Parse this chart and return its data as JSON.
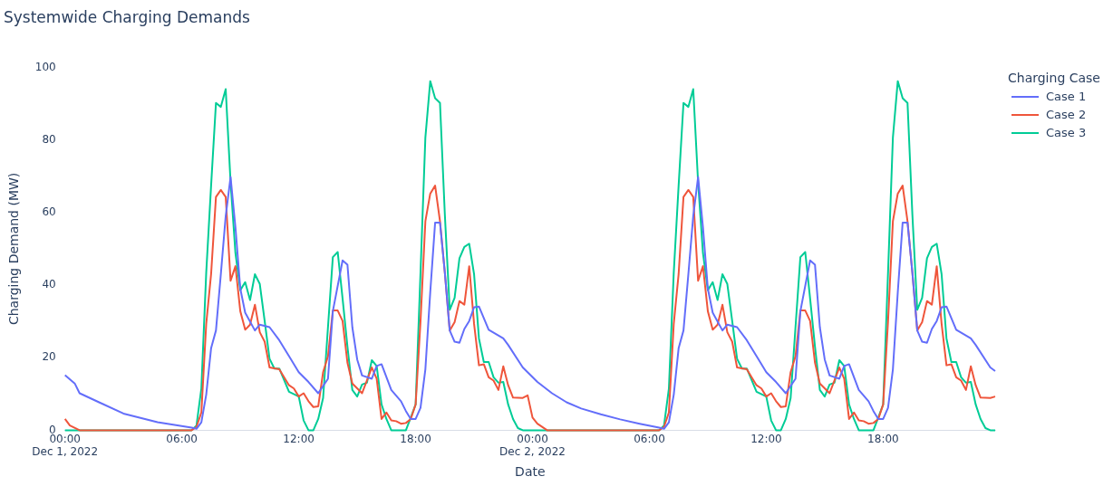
{
  "chart_data": {
    "type": "line",
    "title": "Systemwide Charging Demands",
    "xlabel": "Date",
    "ylabel": "Charging Demand (MW)",
    "legend_title": "Charging Case",
    "legend": "right",
    "grid": false,
    "marker": "none",
    "line_style": "solid",
    "xticks": [
      {
        "value": "2022-12-01T00:00",
        "label": "00:00\nDec 1, 2022"
      },
      {
        "value": "2022-12-01T06:00",
        "label": "06:00"
      },
      {
        "value": "2022-12-01T12:00",
        "label": "12:00"
      },
      {
        "value": "2022-12-01T18:00",
        "label": "18:00"
      },
      {
        "value": "2022-12-02T00:00",
        "label": "00:00\nDec 2, 2022"
      },
      {
        "value": "2022-12-02T06:00",
        "label": "06:00"
      },
      {
        "value": "2022-12-02T12:00",
        "label": "12:00"
      },
      {
        "value": "2022-12-02T18:00",
        "label": "18:00"
      }
    ],
    "xlim": [
      "2022-12-01T00:00",
      "2022-12-02T23:45"
    ],
    "ylim": [
      0,
      100
    ],
    "yticks": [
      0,
      20,
      40,
      60,
      80,
      100
    ],
    "series": [
      {
        "name": "Case 1",
        "color": "#636efa",
        "x": [
          "2022-12-01T00:00",
          "2022-12-01T00:30",
          "2022-12-01T00:45",
          "2022-12-01T01:45",
          "2022-12-01T03:00",
          "2022-12-01T04:45",
          "2022-12-01T06:30",
          "2022-12-01T06:45",
          "2022-12-01T07:00",
          "2022-12-01T07:15",
          "2022-12-01T07:30",
          "2022-12-01T07:45",
          "2022-12-01T08:00",
          "2022-12-01T08:15",
          "2022-12-01T08:30",
          "2022-12-01T08:45",
          "2022-12-01T09:00",
          "2022-12-01T09:15",
          "2022-12-01T09:45",
          "2022-12-01T10:00",
          "2022-12-01T10:30",
          "2022-12-01T11:00",
          "2022-12-01T11:30",
          "2022-12-01T12:00",
          "2022-12-01T12:30",
          "2022-12-01T13:00",
          "2022-12-01T13:30",
          "2022-12-01T13:45",
          "2022-12-01T14:15",
          "2022-12-01T14:30",
          "2022-12-01T14:45",
          "2022-12-01T15:00",
          "2022-12-01T15:15",
          "2022-12-01T15:45",
          "2022-12-01T16:00",
          "2022-12-01T16:15",
          "2022-12-01T16:45",
          "2022-12-01T17:15",
          "2022-12-01T17:30",
          "2022-12-01T17:45",
          "2022-12-01T18:00",
          "2022-12-01T18:15",
          "2022-12-01T18:30",
          "2022-12-01T18:45",
          "2022-12-01T19:00",
          "2022-12-01T19:15",
          "2022-12-01T19:30",
          "2022-12-01T19:45",
          "2022-12-01T20:00",
          "2022-12-01T20:15",
          "2022-12-01T20:30",
          "2022-12-01T20:45",
          "2022-12-01T21:00",
          "2022-12-01T21:15",
          "2022-12-01T21:45",
          "2022-12-01T22:30",
          "2022-12-01T22:45",
          "2022-12-01T23:30",
          "2022-12-02T00:15",
          "2022-12-02T01:00",
          "2022-12-02T01:45",
          "2022-12-02T02:30",
          "2022-12-02T03:30",
          "2022-12-02T04:30",
          "2022-12-02T05:30",
          "2022-12-02T06:30",
          "2022-12-02T06:45",
          "2022-12-02T07:00",
          "2022-12-02T07:15",
          "2022-12-02T07:30",
          "2022-12-02T07:45",
          "2022-12-02T08:00",
          "2022-12-02T08:15",
          "2022-12-02T08:30",
          "2022-12-02T08:45",
          "2022-12-02T09:00",
          "2022-12-02T09:15",
          "2022-12-02T09:45",
          "2022-12-02T10:00",
          "2022-12-02T10:30",
          "2022-12-02T11:00",
          "2022-12-02T11:30",
          "2022-12-02T12:00",
          "2022-12-02T12:30",
          "2022-12-02T13:00",
          "2022-12-02T13:30",
          "2022-12-02T13:45",
          "2022-12-02T14:15",
          "2022-12-02T14:30",
          "2022-12-02T14:45",
          "2022-12-02T15:00",
          "2022-12-02T15:15",
          "2022-12-02T15:45",
          "2022-12-02T16:00",
          "2022-12-02T16:15",
          "2022-12-02T16:45",
          "2022-12-02T17:15",
          "2022-12-02T17:30",
          "2022-12-02T17:45",
          "2022-12-02T18:00",
          "2022-12-02T18:15",
          "2022-12-02T18:30",
          "2022-12-02T18:45",
          "2022-12-02T19:00",
          "2022-12-02T19:15",
          "2022-12-02T19:30",
          "2022-12-02T19:45",
          "2022-12-02T20:00",
          "2022-12-02T20:15",
          "2022-12-02T20:30",
          "2022-12-02T20:45",
          "2022-12-02T21:00",
          "2022-12-02T21:15",
          "2022-12-02T21:45",
          "2022-12-02T22:30",
          "2022-12-02T22:45",
          "2022-12-02T23:30",
          "2022-12-02T23:45"
        ],
        "values": [
          15.2,
          12.9,
          10.2,
          7.7,
          4.6,
          2.2,
          0.7,
          0.4,
          2.2,
          9.8,
          22.6,
          27.5,
          43,
          59,
          69.8,
          55.9,
          39,
          32.4,
          27.5,
          29.1,
          28.4,
          24.8,
          20.4,
          16,
          13.3,
          10.2,
          14.2,
          32.8,
          46.8,
          45.6,
          28.4,
          19.5,
          15.1,
          14.2,
          17.7,
          18.2,
          11.1,
          8,
          5.3,
          3.1,
          3.1,
          6.2,
          16.8,
          38,
          57.2,
          57.2,
          43.4,
          27.5,
          24.4,
          24.1,
          27.9,
          30.1,
          33.9,
          34.1,
          27.7,
          25.3,
          23.5,
          17.3,
          13.3,
          10.2,
          7.7,
          6,
          4.4,
          3,
          1.8,
          0.7,
          0.4,
          2.2,
          9.8,
          22.6,
          27.5,
          43,
          59,
          69.8,
          55.9,
          39,
          32.4,
          27.5,
          29.1,
          28.4,
          24.8,
          20.4,
          16,
          13.3,
          10.2,
          14.2,
          32.8,
          46.8,
          45.6,
          28.4,
          19.5,
          15.1,
          14.2,
          17.7,
          18.2,
          11.1,
          8,
          5.3,
          3.1,
          3.1,
          6.2,
          16.8,
          38,
          57.2,
          57.2,
          43.4,
          27.5,
          24.4,
          24.1,
          27.9,
          30.1,
          33.9,
          34.1,
          27.7,
          25.3,
          23.5,
          17.3,
          16.3
        ]
      },
      {
        "name": "Case 2",
        "color": "#ef553b",
        "x": [
          "2022-12-01T00:00",
          "2022-12-01T00:15",
          "2022-12-01T00:45",
          "2022-12-01T06:30",
          "2022-12-01T06:45",
          "2022-12-01T07:00",
          "2022-12-01T07:15",
          "2022-12-01T07:30",
          "2022-12-01T07:45",
          "2022-12-01T08:00",
          "2022-12-01T08:15",
          "2022-12-01T08:30",
          "2022-12-01T08:45",
          "2022-12-01T09:00",
          "2022-12-01T09:15",
          "2022-12-01T09:30",
          "2022-12-01T09:45",
          "2022-12-01T10:00",
          "2022-12-01T10:15",
          "2022-12-01T10:30",
          "2022-12-01T11:00",
          "2022-12-01T11:30",
          "2022-12-01T11:45",
          "2022-12-01T12:00",
          "2022-12-01T12:15",
          "2022-12-01T12:30",
          "2022-12-01T12:45",
          "2022-12-01T13:00",
          "2022-12-01T13:15",
          "2022-12-01T13:30",
          "2022-12-01T13:45",
          "2022-12-01T14:00",
          "2022-12-01T14:15",
          "2022-12-01T14:30",
          "2022-12-01T14:45",
          "2022-12-01T15:15",
          "2022-12-01T15:30",
          "2022-12-01T15:45",
          "2022-12-01T16:00",
          "2022-12-01T16:15",
          "2022-12-01T16:30",
          "2022-12-01T16:45",
          "2022-12-01T17:00",
          "2022-12-01T17:15",
          "2022-12-01T17:30",
          "2022-12-01T17:45",
          "2022-12-01T18:00",
          "2022-12-01T18:15",
          "2022-12-01T18:30",
          "2022-12-01T18:45",
          "2022-12-01T19:00",
          "2022-12-01T19:15",
          "2022-12-01T19:30",
          "2022-12-01T19:45",
          "2022-12-01T20:00",
          "2022-12-01T20:15",
          "2022-12-01T20:30",
          "2022-12-01T20:45",
          "2022-12-01T21:00",
          "2022-12-01T21:15",
          "2022-12-01T21:30",
          "2022-12-01T21:45",
          "2022-12-01T22:00",
          "2022-12-01T22:15",
          "2022-12-01T22:30",
          "2022-12-01T22:45",
          "2022-12-01T23:00",
          "2022-12-01T23:30",
          "2022-12-01T23:45",
          "2022-12-02T00:00",
          "2022-12-02T00:15",
          "2022-12-02T00:45",
          "2022-12-02T06:30",
          "2022-12-02T06:45",
          "2022-12-02T07:00",
          "2022-12-02T07:15",
          "2022-12-02T07:30",
          "2022-12-02T07:45",
          "2022-12-02T08:00",
          "2022-12-02T08:15",
          "2022-12-02T08:30",
          "2022-12-02T08:45",
          "2022-12-02T09:00",
          "2022-12-02T09:15",
          "2022-12-02T09:30",
          "2022-12-02T09:45",
          "2022-12-02T10:00",
          "2022-12-02T10:15",
          "2022-12-02T10:30",
          "2022-12-02T11:00",
          "2022-12-02T11:30",
          "2022-12-02T11:45",
          "2022-12-02T12:00",
          "2022-12-02T12:15",
          "2022-12-02T12:30",
          "2022-12-02T12:45",
          "2022-12-02T13:00",
          "2022-12-02T13:15",
          "2022-12-02T13:30",
          "2022-12-02T13:45",
          "2022-12-02T14:00",
          "2022-12-02T14:15",
          "2022-12-02T14:30",
          "2022-12-02T14:45",
          "2022-12-02T15:15",
          "2022-12-02T15:30",
          "2022-12-02T15:45",
          "2022-12-02T16:00",
          "2022-12-02T16:15",
          "2022-12-02T16:30",
          "2022-12-02T16:45",
          "2022-12-02T17:00",
          "2022-12-02T17:15",
          "2022-12-02T17:30",
          "2022-12-02T17:45",
          "2022-12-02T18:00",
          "2022-12-02T18:15",
          "2022-12-02T18:30",
          "2022-12-02T18:45",
          "2022-12-02T19:00",
          "2022-12-02T19:15",
          "2022-12-02T19:30",
          "2022-12-02T19:45",
          "2022-12-02T20:00",
          "2022-12-02T20:15",
          "2022-12-02T20:30",
          "2022-12-02T20:45",
          "2022-12-02T21:00",
          "2022-12-02T21:15",
          "2022-12-02T21:30",
          "2022-12-02T21:45",
          "2022-12-02T22:00",
          "2022-12-02T22:15",
          "2022-12-02T22:30",
          "2022-12-02T22:45",
          "2022-12-02T23:00",
          "2022-12-02T23:30",
          "2022-12-02T23:45"
        ],
        "values": [
          3.1,
          1.3,
          0,
          0,
          0.9,
          4.9,
          29.3,
          43,
          64.3,
          66.2,
          64.3,
          41.2,
          45.2,
          32.8,
          27.7,
          29.1,
          34.6,
          27,
          24.4,
          17.3,
          16.8,
          12.4,
          11.5,
          9.3,
          10.2,
          8,
          6.4,
          6.6,
          16,
          20.4,
          33,
          33,
          30.1,
          18.6,
          12.9,
          10.2,
          13.7,
          17.3,
          14.2,
          3.1,
          4.9,
          2.7,
          2.5,
          1.8,
          2,
          3.1,
          7.1,
          30,
          57.6,
          65.2,
          67.4,
          57.6,
          43.4,
          27.5,
          29.8,
          35.6,
          34.6,
          45.2,
          29.3,
          17.9,
          18.2,
          14.6,
          13.7,
          11.1,
          17.6,
          12.4,
          9,
          8.9,
          9.6,
          3.5,
          1.8,
          0,
          0,
          0.9,
          4.9,
          29.3,
          43,
          64.3,
          66.2,
          64.3,
          41.2,
          45.2,
          32.8,
          27.7,
          29.1,
          34.6,
          27,
          24.4,
          17.3,
          16.8,
          12.4,
          11.5,
          9.3,
          10.2,
          8,
          6.4,
          6.6,
          16,
          20.4,
          33,
          33,
          30.1,
          18.6,
          12.9,
          10.2,
          13.7,
          17.3,
          14.2,
          3.1,
          4.9,
          2.7,
          2.5,
          1.8,
          2,
          3.1,
          7.1,
          30,
          57.6,
          65.2,
          67.4,
          57.6,
          43.4,
          27.5,
          29.8,
          35.6,
          34.6,
          45.2,
          29.3,
          17.9,
          18.2,
          14.6,
          13.7,
          11.1,
          17.6,
          12.4,
          9,
          8.9,
          9.3
        ]
      },
      {
        "name": "Case 3",
        "color": "#00cc96",
        "x": [
          "2022-12-01T00:00",
          "2022-12-01T06:30",
          "2022-12-01T06:45",
          "2022-12-01T07:00",
          "2022-12-01T07:15",
          "2022-12-01T07:30",
          "2022-12-01T07:45",
          "2022-12-01T08:00",
          "2022-12-01T08:15",
          "2022-12-01T08:30",
          "2022-12-01T08:45",
          "2022-12-01T09:00",
          "2022-12-01T09:15",
          "2022-12-01T09:30",
          "2022-12-01T09:45",
          "2022-12-01T10:00",
          "2022-12-01T10:15",
          "2022-12-01T10:30",
          "2022-12-01T10:45",
          "2022-12-01T11:00",
          "2022-12-01T11:30",
          "2022-12-01T12:00",
          "2022-12-01T12:15",
          "2022-12-01T12:30",
          "2022-12-01T12:45",
          "2022-12-01T13:00",
          "2022-12-01T13:15",
          "2022-12-01T13:30",
          "2022-12-01T13:45",
          "2022-12-01T14:00",
          "2022-12-01T14:15",
          "2022-12-01T14:30",
          "2022-12-01T14:45",
          "2022-12-01T15:00",
          "2022-12-01T15:15",
          "2022-12-01T15:30",
          "2022-12-01T15:45",
          "2022-12-01T16:00",
          "2022-12-01T16:15",
          "2022-12-01T16:30",
          "2022-12-01T16:45",
          "2022-12-01T17:30",
          "2022-12-01T17:45",
          "2022-12-01T18:00",
          "2022-12-01T18:15",
          "2022-12-01T18:30",
          "2022-12-01T18:45",
          "2022-12-01T19:00",
          "2022-12-01T19:15",
          "2022-12-01T19:30",
          "2022-12-01T19:45",
          "2022-12-01T20:00",
          "2022-12-01T20:15",
          "2022-12-01T20:30",
          "2022-12-01T20:45",
          "2022-12-01T21:00",
          "2022-12-01T21:15",
          "2022-12-01T21:30",
          "2022-12-01T21:45",
          "2022-12-01T22:00",
          "2022-12-01T22:15",
          "2022-12-01T22:30",
          "2022-12-01T22:45",
          "2022-12-01T23:00",
          "2022-12-01T23:15",
          "2022-12-01T23:30",
          "2022-12-02T06:30",
          "2022-12-02T06:45",
          "2022-12-02T07:00",
          "2022-12-02T07:15",
          "2022-12-02T07:30",
          "2022-12-02T07:45",
          "2022-12-02T08:00",
          "2022-12-02T08:15",
          "2022-12-02T08:30",
          "2022-12-02T08:45",
          "2022-12-02T09:00",
          "2022-12-02T09:15",
          "2022-12-02T09:30",
          "2022-12-02T09:45",
          "2022-12-02T10:00",
          "2022-12-02T10:15",
          "2022-12-02T10:30",
          "2022-12-02T10:45",
          "2022-12-02T11:00",
          "2022-12-02T11:30",
          "2022-12-02T12:00",
          "2022-12-02T12:15",
          "2022-12-02T12:30",
          "2022-12-02T12:45",
          "2022-12-02T13:00",
          "2022-12-02T13:15",
          "2022-12-02T13:30",
          "2022-12-02T13:45",
          "2022-12-02T14:00",
          "2022-12-02T14:15",
          "2022-12-02T14:30",
          "2022-12-02T14:45",
          "2022-12-02T15:00",
          "2022-12-02T15:15",
          "2022-12-02T15:30",
          "2022-12-02T15:45",
          "2022-12-02T16:00",
          "2022-12-02T16:15",
          "2022-12-02T16:30",
          "2022-12-02T16:45",
          "2022-12-02T17:30",
          "2022-12-02T17:45",
          "2022-12-02T18:00",
          "2022-12-02T18:15",
          "2022-12-02T18:30",
          "2022-12-02T18:45",
          "2022-12-02T19:00",
          "2022-12-02T19:15",
          "2022-12-02T19:30",
          "2022-12-02T19:45",
          "2022-12-02T20:00",
          "2022-12-02T20:15",
          "2022-12-02T20:30",
          "2022-12-02T20:45",
          "2022-12-02T21:00",
          "2022-12-02T21:15",
          "2022-12-02T21:30",
          "2022-12-02T21:45",
          "2022-12-02T22:00",
          "2022-12-02T22:15",
          "2022-12-02T22:30",
          "2022-12-02T22:45",
          "2022-12-02T23:00",
          "2022-12-02T23:15",
          "2022-12-02T23:30",
          "2022-12-02T23:45"
        ],
        "values": [
          0,
          0,
          1.3,
          11.5,
          43.4,
          67.4,
          90.2,
          89.1,
          94,
          68.3,
          48.8,
          38.6,
          40.8,
          35.9,
          43,
          40.3,
          30.1,
          19.7,
          17,
          17,
          10.6,
          9.3,
          2.7,
          0,
          0,
          3.1,
          8.9,
          28.4,
          47.7,
          49.1,
          36.3,
          23,
          11.1,
          9.3,
          12.6,
          13.1,
          19.3,
          17.7,
          7.1,
          3.1,
          0,
          0,
          3.5,
          7.1,
          43.4,
          80.7,
          96.2,
          91.5,
          90.2,
          59.4,
          33.2,
          36.5,
          47.4,
          50.5,
          51.4,
          43,
          25.3,
          18.8,
          18.8,
          14.6,
          13.1,
          13.3,
          7.1,
          3.1,
          0.6,
          0,
          0,
          1.3,
          11.5,
          43.4,
          67.4,
          90.2,
          89.1,
          94,
          68.3,
          48.8,
          38.6,
          40.8,
          35.9,
          43,
          40.3,
          30.1,
          19.7,
          17,
          17,
          10.6,
          9.3,
          2.7,
          0,
          0,
          3.1,
          8.9,
          28.4,
          47.7,
          49.1,
          36.3,
          23,
          11.1,
          9.3,
          12.6,
          13.1,
          19.3,
          17.7,
          7.1,
          3.1,
          0,
          0,
          3.5,
          7.1,
          43.4,
          80.7,
          96.2,
          91.5,
          90.2,
          59.4,
          33.2,
          36.5,
          47.4,
          50.5,
          51.4,
          43,
          25.3,
          18.8,
          18.8,
          14.6,
          13.1,
          13.3,
          7.1,
          3.1,
          0.6,
          0,
          0
        ]
      }
    ]
  }
}
